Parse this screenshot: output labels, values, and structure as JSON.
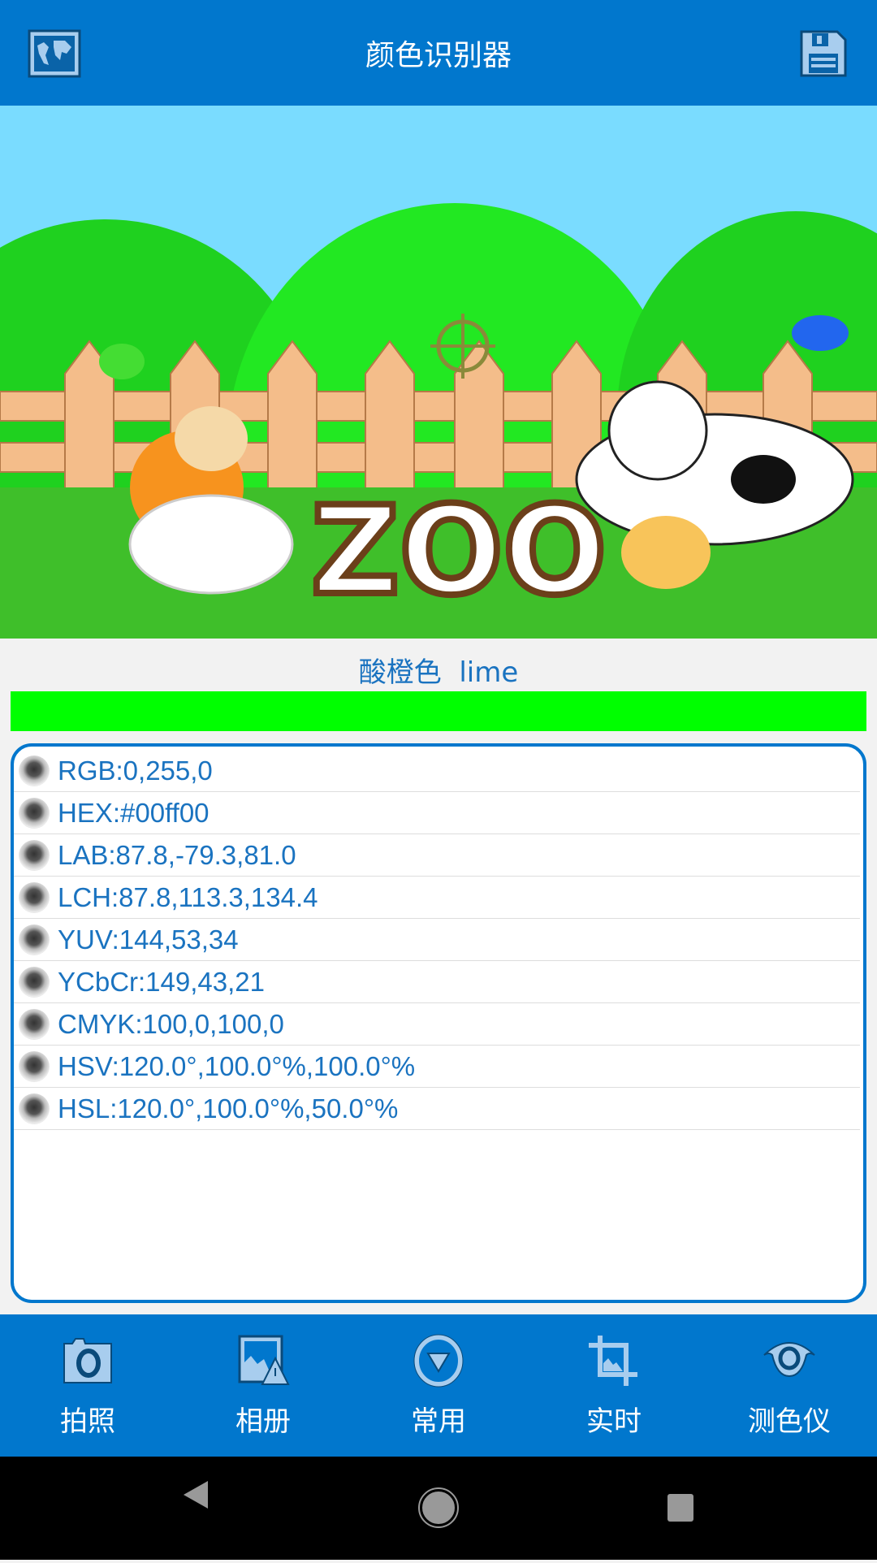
{
  "header": {
    "title": "颜色识别器",
    "left_icon": "world-map-icon",
    "right_icon": "save-floppy-icon"
  },
  "photo": {
    "logo_text": "ZOO"
  },
  "color": {
    "name": "酸橙色  lime",
    "swatch": "#00ff00"
  },
  "values": [
    {
      "label": "RGB:0,255,0"
    },
    {
      "label": "HEX:#00ff00"
    },
    {
      "label": "LAB:87.8,-79.3,81.0"
    },
    {
      "label": "LCH:87.8,113.3,134.4"
    },
    {
      "label": "YUV:144,53,34"
    },
    {
      "label": "YCbCr:149,43,21"
    },
    {
      "label": "CMYK:100,0,100,0"
    },
    {
      "label": "HSV:120.0°,100.0°%,100.0°%"
    },
    {
      "label": "HSL:120.0°,100.0°%,50.0°%"
    }
  ],
  "bottom_nav": [
    {
      "label": "拍照",
      "icon": "camera-icon"
    },
    {
      "label": "相册",
      "icon": "gallery-icon"
    },
    {
      "label": "常用",
      "icon": "dropdown-circle-icon"
    },
    {
      "label": "实时",
      "icon": "crop-icon"
    },
    {
      "label": "测色仪",
      "icon": "eye-icon"
    }
  ],
  "colors": {
    "primary": "#0177cd",
    "text": "#1a73c0"
  }
}
